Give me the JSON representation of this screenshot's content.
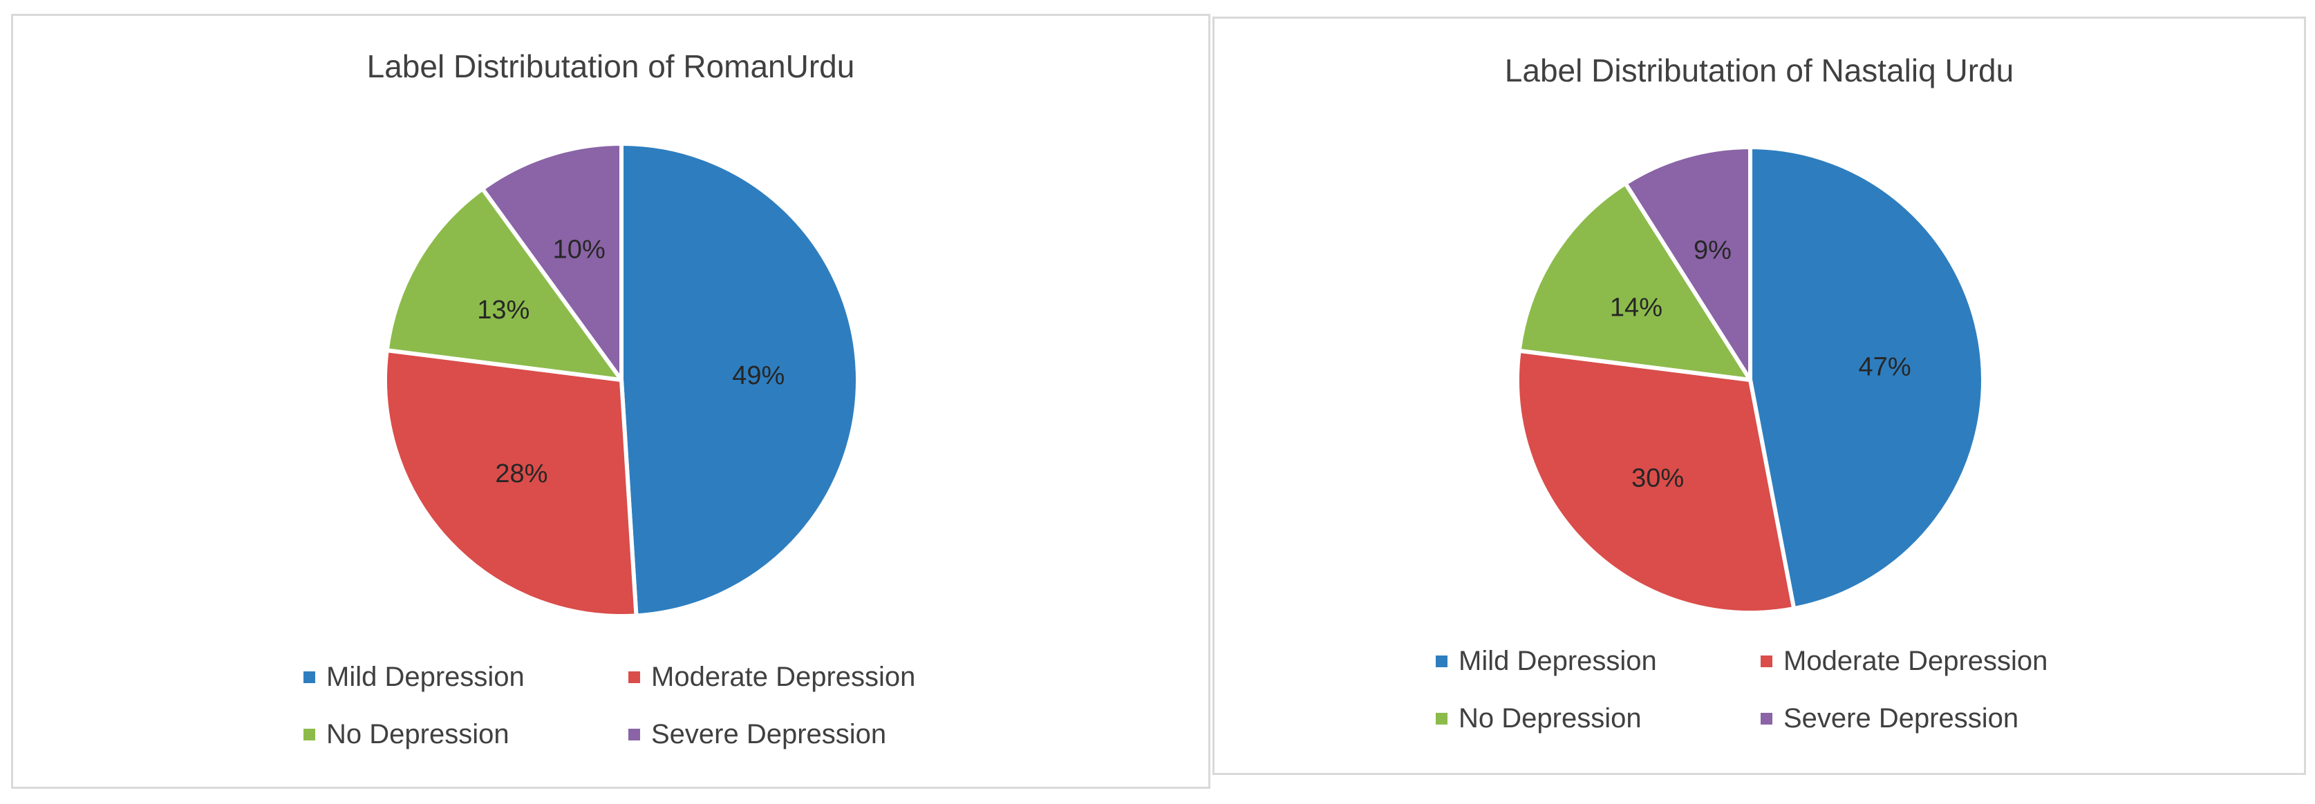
{
  "chart_data": [
    {
      "type": "pie",
      "title": "Label Distributation of RomanUrdu",
      "categories": [
        "Mild Depression",
        "Moderate Depression",
        "No Depression",
        "Severe Depression"
      ],
      "values": [
        49,
        28,
        13,
        10
      ],
      "data_labels": [
        "49%",
        "28%",
        "13%",
        "10%"
      ],
      "colors": [
        "#2E7EBF",
        "#DA4D4A",
        "#8CBB4B",
        "#8A64A6"
      ],
      "legend_position": "bottom"
    },
    {
      "type": "pie",
      "title": "Label Distributation of Nastaliq  Urdu",
      "categories": [
        "Mild Depression",
        "Moderate Depression",
        "No Depression",
        "Severe Depression"
      ],
      "values": [
        47,
        30,
        14,
        9
      ],
      "data_labels": [
        "47%",
        "30%",
        "14%",
        "9%"
      ],
      "colors": [
        "#2E7EBF",
        "#DA4D4A",
        "#8CBB4B",
        "#8A64A6"
      ],
      "legend_position": "bottom"
    }
  ]
}
